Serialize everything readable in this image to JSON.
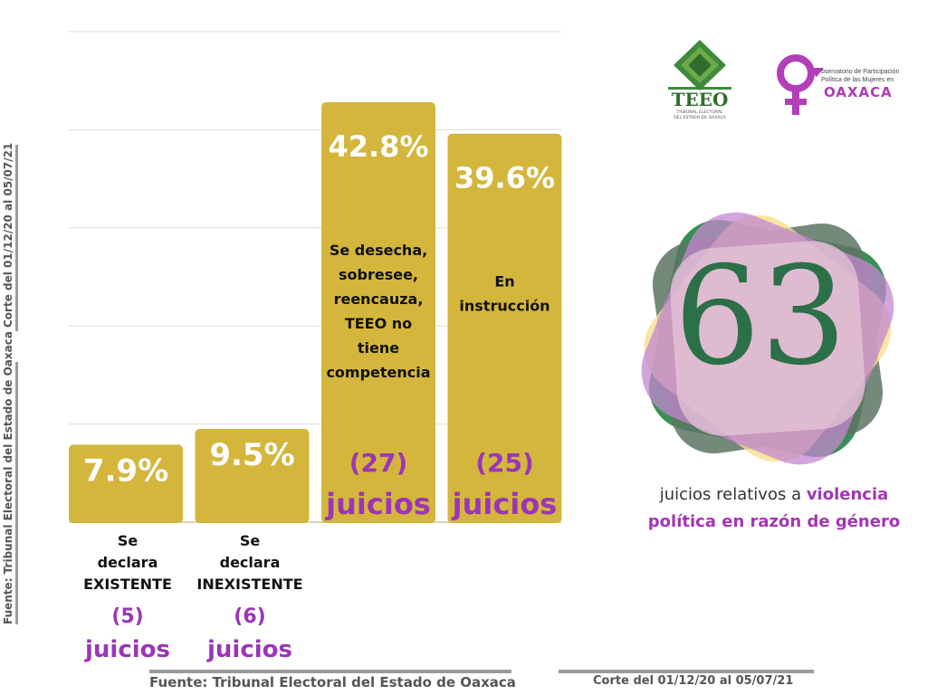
{
  "chart_data": {
    "type": "bar",
    "categories": [
      "Se declara EXISTENTE",
      "Se declara INEXISTENTE",
      "Se desecha, sobresee, reencauza, TEEO no tiene competencia",
      "En instrucción"
    ],
    "values": [
      7.9,
      9.5,
      42.8,
      39.6
    ],
    "value_labels": [
      "7.9%",
      "9.5%",
      "42.8%",
      "39.6%"
    ],
    "counts": [
      "(5)",
      "(6)",
      "(27)",
      "(25)"
    ],
    "count_word": "juicios",
    "bar_color": "#d4b63d",
    "count_color": "#9b35b8",
    "ylim": [
      0,
      50
    ],
    "grid": true,
    "label_lines": [
      [
        "Se",
        "declara",
        "EXISTENTE"
      ],
      [
        "Se",
        "declara",
        "INEXISTENTE"
      ],
      [
        "Se desecha,",
        "sobresee,",
        "reencauza,",
        "TEEO no",
        "tiene",
        "competencia"
      ],
      [
        "En",
        "instrucción"
      ]
    ]
  },
  "summary": {
    "total": "63",
    "caption_prefix": "juicios relativos a ",
    "caption_highlight_1": "violencia",
    "caption_highlight_2": "política en razón de género",
    "number_color": "#2b7048",
    "highlight_color": "#a335b6"
  },
  "logos": {
    "teeo_name": "TEEO",
    "teeo_sub_1": "TRIBUNAL ELECTORAL",
    "teeo_sub_2": "DEL ESTADO DE OAXACA",
    "obs_line_1": "bservatorio de Participación",
    "obs_line_2": "Política de las Mujeres en",
    "obs_oaxaca": "OAXACA"
  },
  "side": {
    "vertical_cut": "Corte del 01/12/20 al 05/07/21",
    "vertical_source": "Fuente: Tribunal Electoral del Estado de Oaxaca"
  },
  "footer": {
    "source": "Fuente: Tribunal Electoral del Estado de Oaxaca",
    "cut": "Corte del 01/12/20 al 05/07/21"
  }
}
